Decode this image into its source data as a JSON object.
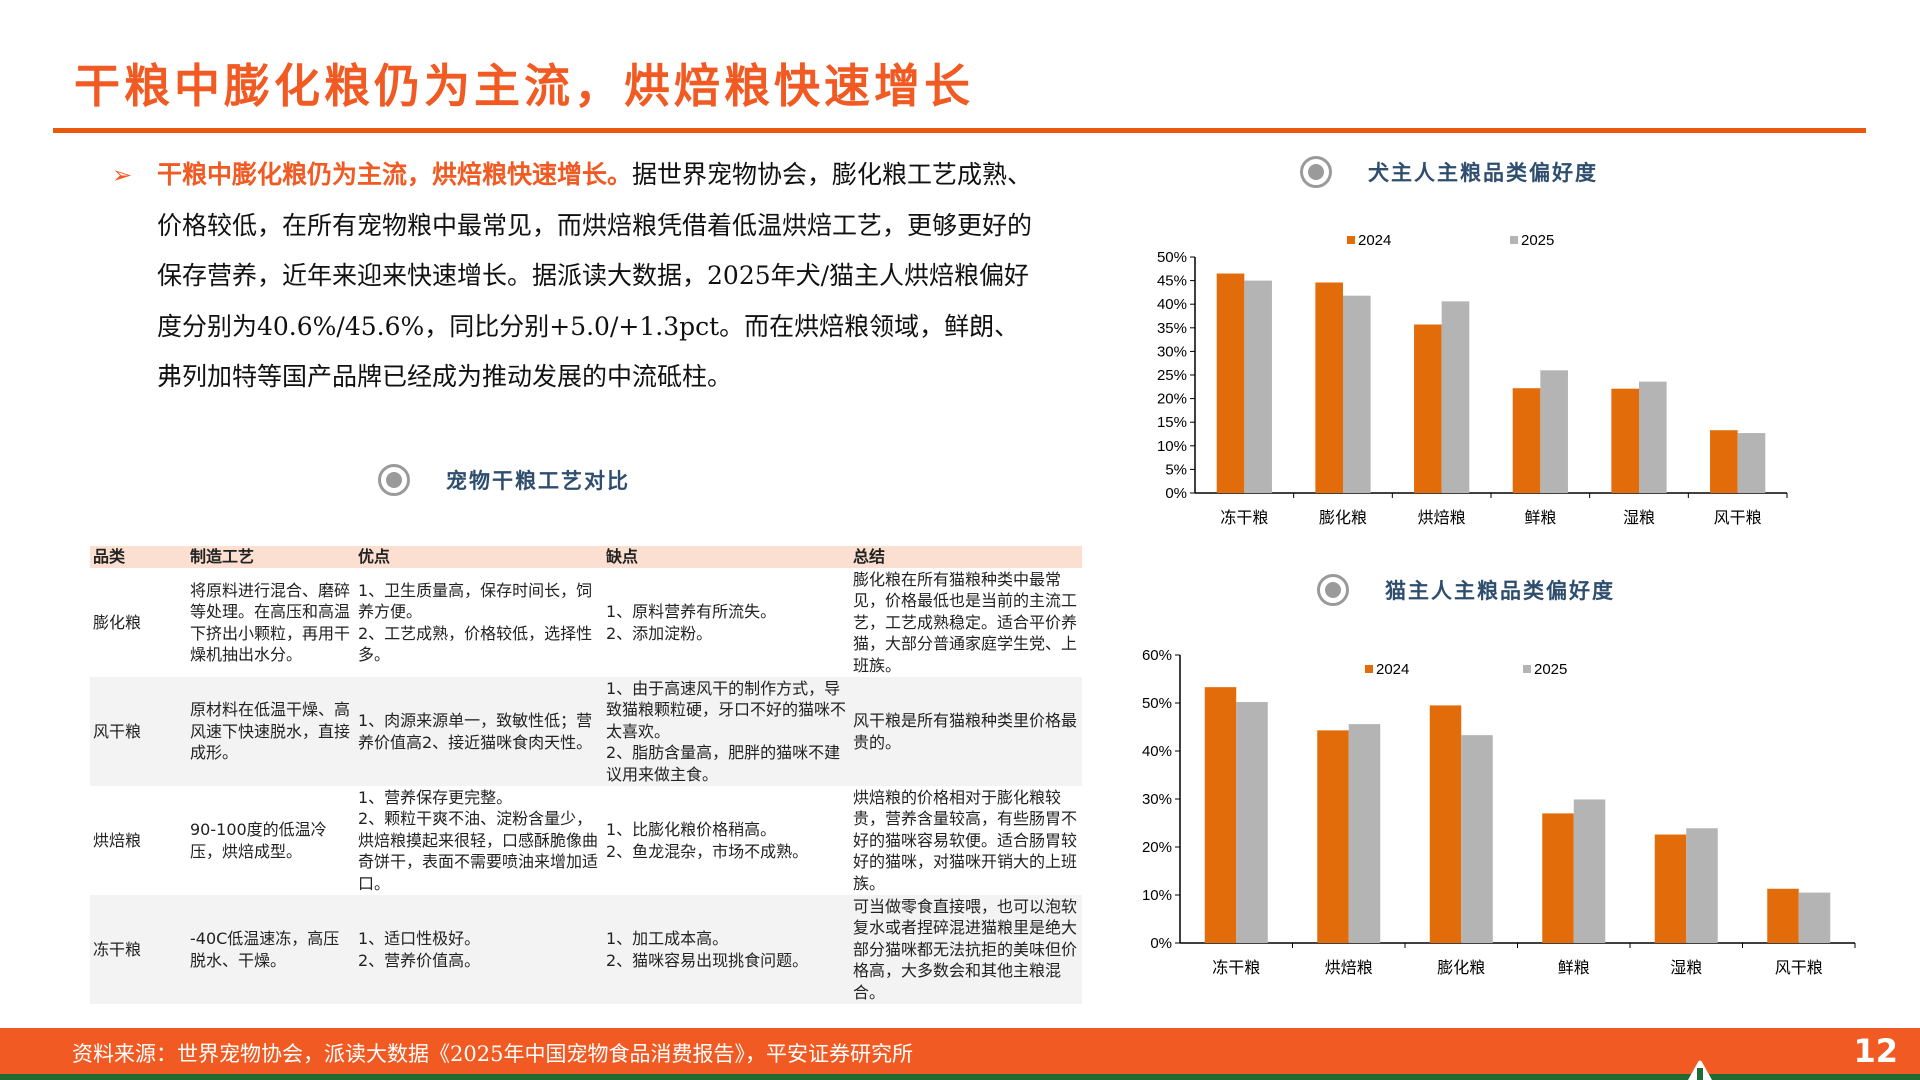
{
  "title": "干粮中膨化粮仍为主流，烘焙粮快速增长",
  "bullet": {
    "highlight": "干粮中膨化粮仍为主流，烘焙粮快速增长。",
    "body": "据世界宠物协会，膨化粮工艺成熟、价格较低，在所有宠物粮中最常见，而烘焙粮凭借着低温烘焙工艺，更够更好的保存营养，近年来迎来快速增长。据派读大数据，2025年犬/猫主人烘焙粮偏好度分别为40.6%/45.6%，同比分别+5.0/+1.3pct。而在烘焙粮领域，鲜朗、弗列加特等国产品牌已经成为推动发展的中流砥柱。"
  },
  "table": {
    "caption": "宠物干粮工艺对比",
    "headers": [
      "品类",
      "制造工艺",
      "优点",
      "缺点",
      "总结"
    ],
    "rows": [
      [
        "膨化粮",
        "将原料进行混合、磨碎等处理。在高压和高温下挤出小颗粒，再用干燥机抽出水分。",
        "1、卫生质量高，保存时间长，饲养方便。\n2、工艺成熟，价格较低，选择性多。",
        "1、原料营养有所流失。\n2、添加淀粉。",
        "膨化粮在所有猫粮种类中最常见，价格最低也是当前的主流工艺，工艺成熟稳定。适合平价养猫，大部分普通家庭学生党、上班族。"
      ],
      [
        "风干粮",
        "原材料在低温干燥、高风速下快速脱水，直接成形。",
        "1、肉源来源单一，致敏性低；营养价值高2、接近猫咪食肉天性。",
        "1、由于高速风干的制作方式，导致猫粮颗粒硬，牙口不好的猫咪不太喜欢。\n2、脂肪含量高，肥胖的猫咪不建议用来做主食。",
        "风干粮是所有猫粮种类里价格最贵的。"
      ],
      [
        "烘焙粮",
        "90-100度的低温冷压，烘焙成型。",
        "1、营养保存更完整。\n2、颗粒干爽不油、淀粉含量少，烘焙粮摸起来很轻，口感酥脆像曲奇饼干，表面不需要喷油来增加适口。",
        "1、比膨化粮价格稍高。\n2、鱼龙混杂，市场不成熟。",
        "烘焙粮的价格相对于膨化粮较贵，营养含量较高，有些肠胃不好的猫咪容易软便。适合肠胃较好的猫咪，对猫咪开销大的上班族。"
      ],
      [
        "冻干粮",
        "-40C低温速冻，高压脱水、干燥。",
        "1、适口性极好。\n2、营养价值高。",
        "1、加工成本高。\n2、猫咪容易出现挑食问题。",
        "可当做零食直接喂，也可以泡软复水或者捏碎混进猫粮里是绝大部分猫咪都无法抗拒的美味但价格高，大多数会和其他主粮混合。"
      ]
    ]
  },
  "chart_data": [
    {
      "type": "bar",
      "title": "犬主人主粮品类偏好度",
      "categories": [
        "冻干粮",
        "膨化粮",
        "烘焙粮",
        "鲜粮",
        "湿粮",
        "风干粮"
      ],
      "series": [
        {
          "name": "2024",
          "color": "#E36C0A",
          "values": [
            46.5,
            44.6,
            35.7,
            22.2,
            22.1,
            13.3
          ]
        },
        {
          "name": "2025",
          "color": "#B4B4B4",
          "values": [
            45.0,
            41.8,
            40.6,
            26.0,
            23.6,
            12.7
          ]
        }
      ],
      "ylim": [
        0,
        50
      ],
      "yticks": [
        0,
        5,
        10,
        15,
        20,
        25,
        30,
        35,
        40,
        45,
        50
      ],
      "ytick_labels": [
        "0%",
        "5%",
        "10%",
        "15%",
        "20%",
        "25%",
        "30%",
        "35%",
        "40%",
        "45%",
        "50%"
      ],
      "legend": "top",
      "grid": false
    },
    {
      "type": "bar",
      "title": "猫主人主粮品类偏好度",
      "categories": [
        "冻干粮",
        "烘焙粮",
        "膨化粮",
        "鲜粮",
        "湿粮",
        "风干粮"
      ],
      "series": [
        {
          "name": "2024",
          "color": "#E36C0A",
          "values": [
            53.3,
            44.3,
            49.5,
            27.0,
            22.6,
            11.3
          ]
        },
        {
          "name": "2025",
          "color": "#B4B4B4",
          "values": [
            50.2,
            45.6,
            43.3,
            29.9,
            23.9,
            10.5
          ]
        }
      ],
      "ylim": [
        0,
        60
      ],
      "yticks": [
        0,
        10,
        20,
        30,
        40,
        50,
        60
      ],
      "ytick_labels": [
        "0%",
        "10%",
        "20%",
        "30%",
        "40%",
        "50%",
        "60%"
      ],
      "legend": "top",
      "grid": false
    }
  ],
  "footer": {
    "source": "资料来源：世界宠物协会，派读大数据《2025年中国宠物食品消费报告》，平安证券研究所",
    "page": "12"
  }
}
